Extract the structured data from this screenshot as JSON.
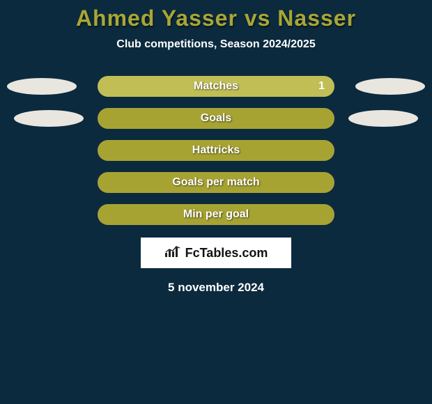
{
  "title": {
    "text": "Ahmed Yasser vs Nasser",
    "color": "#a8a636",
    "fontsize": 32,
    "shadow": "1px 2px 2px rgba(0,0,0,0.6)"
  },
  "subtitle": {
    "text": "Club competitions, Season 2024/2025",
    "color": "#ffffff",
    "fontsize": 16
  },
  "background_color": "#0c2a3e",
  "ellipse_color": "#e9e6e0",
  "stats": [
    {
      "label": "Matches",
      "value": "1",
      "bar_color": "#c0be55",
      "has_ellipses": true,
      "ellipse_left_class": "ellipse-left-1",
      "ellipse_right_class": "ellipse-right-1"
    },
    {
      "label": "Goals",
      "value": "",
      "bar_color": "#a7a333",
      "has_ellipses": true,
      "ellipse_left_class": "ellipse-left-2",
      "ellipse_right_class": "ellipse-right-2"
    },
    {
      "label": "Hattricks",
      "value": "",
      "bar_color": "#a7a333",
      "has_ellipses": false
    },
    {
      "label": "Goals per match",
      "value": "",
      "bar_color": "#a7a333",
      "has_ellipses": false
    },
    {
      "label": "Min per goal",
      "value": "",
      "bar_color": "#a7a333",
      "has_ellipses": false
    }
  ],
  "logo": {
    "text": "FcTables.com",
    "fontsize": 18,
    "icon_color": "#222222"
  },
  "date": {
    "text": "5 november 2024",
    "fontsize": 17
  },
  "label_fontsize": 16,
  "label_color": "#ffffff"
}
